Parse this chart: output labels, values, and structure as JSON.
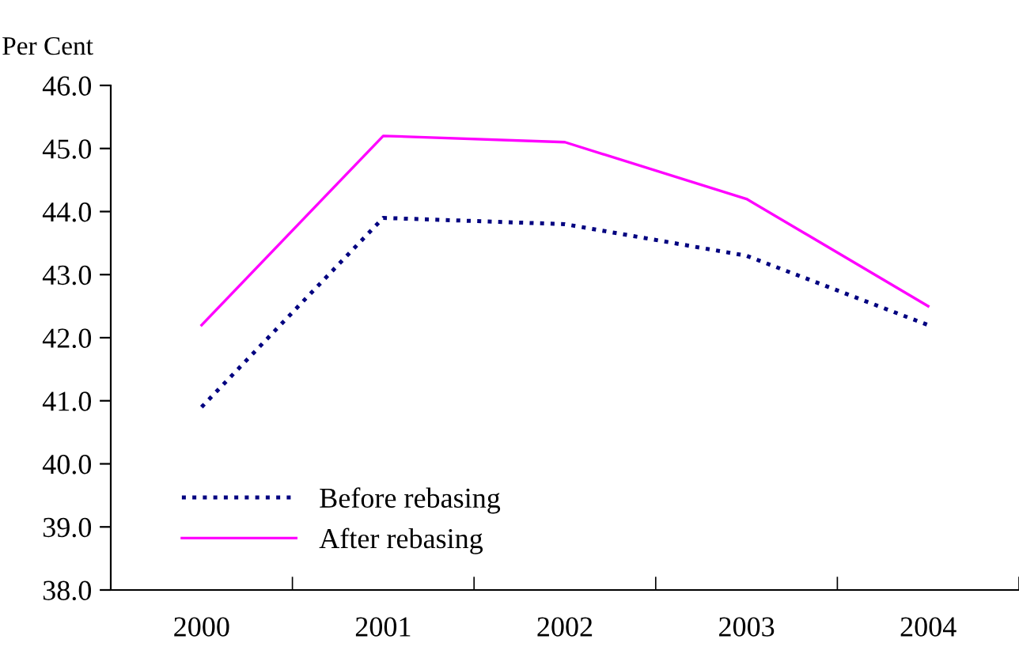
{
  "chart_data": {
    "type": "line",
    "ylabel": "Per Cent",
    "categories": [
      "2000",
      "2001",
      "2002",
      "2003",
      "2004"
    ],
    "series": [
      {
        "name": "Before rebasing",
        "color": "#000080",
        "line_style": "dotted",
        "values": [
          40.9,
          43.9,
          43.8,
          43.3,
          42.2
        ]
      },
      {
        "name": "After rebasing",
        "color": "#ff00ff",
        "line_style": "solid",
        "values": [
          42.2,
          45.2,
          45.1,
          44.2,
          42.5
        ]
      }
    ],
    "ylim": [
      38.0,
      46.0
    ],
    "yticks": [
      {
        "value": 38,
        "label": "38.0"
      },
      {
        "value": 39,
        "label": "39.0"
      },
      {
        "value": 40,
        "label": "40.0"
      },
      {
        "value": 41,
        "label": "41.0"
      },
      {
        "value": 42,
        "label": "42.0"
      },
      {
        "value": 43,
        "label": "43.0"
      },
      {
        "value": 44,
        "label": "44.0"
      },
      {
        "value": 45,
        "label": "45.0"
      },
      {
        "value": 46,
        "label": "46.0"
      }
    ],
    "grid": false,
    "legend": "bottom left",
    "marker": "none"
  }
}
